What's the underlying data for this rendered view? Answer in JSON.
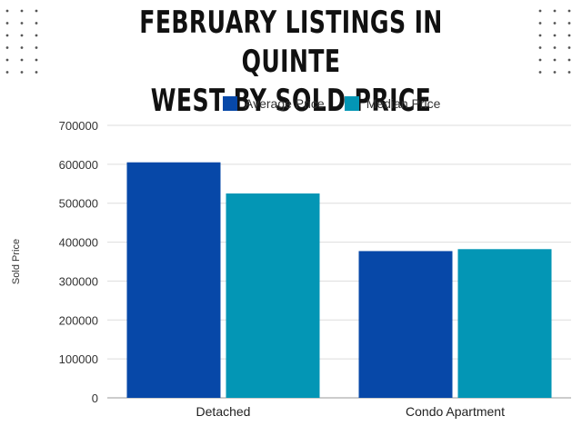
{
  "chart_data": {
    "type": "bar",
    "title": "FEBRUARY LISTINGS IN QUINTE WEST BY SOLD PRICE",
    "title_lines": [
      "FEBRUARY LISTINGS IN QUINTE",
      "WEST BY SOLD PRICE"
    ],
    "xlabel": "",
    "ylabel": "Sold Price",
    "categories": [
      "Detached",
      "Condo Apartment"
    ],
    "series": [
      {
        "name": "Average Price",
        "color": "#0748a8",
        "values": [
          605000,
          377000
        ]
      },
      {
        "name": "Median Price",
        "color": "#0396b5",
        "values": [
          525000,
          382000
        ]
      }
    ],
    "ylim": [
      0,
      700000
    ],
    "yticks": [
      "0",
      "100000",
      "200000",
      "300000",
      "400000",
      "500000",
      "600000",
      "700000"
    ],
    "grid": true,
    "legend_position": "top"
  },
  "colors": {
    "dot": "#555555",
    "grid": "#dddddd",
    "axis": "#999999"
  }
}
